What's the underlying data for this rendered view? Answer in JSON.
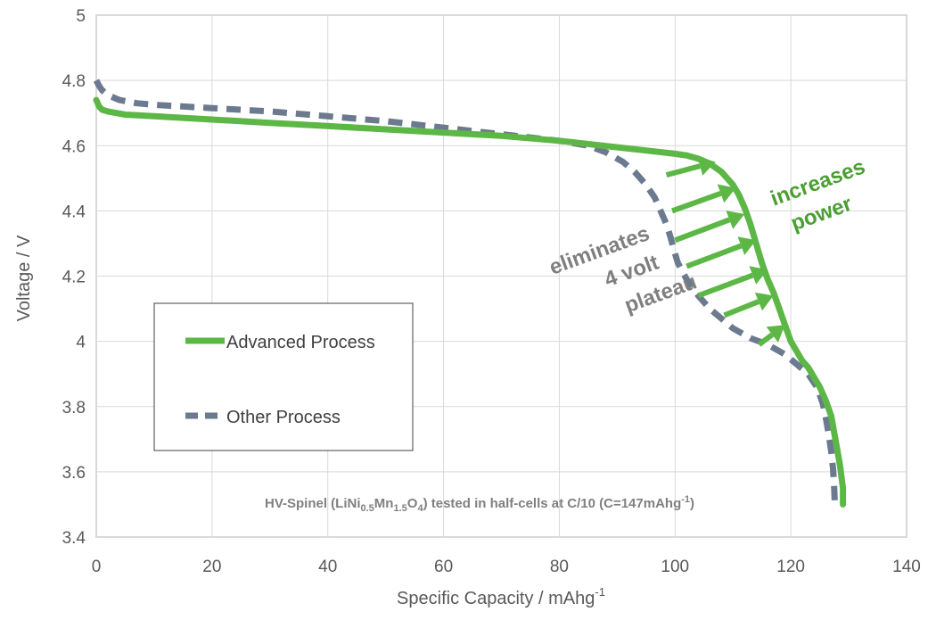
{
  "chart_data": {
    "type": "line",
    "xlabel": "Specific Capacity / mAhg",
    "xlabel_sup": "-1",
    "ylabel": "Voltage / V",
    "xlim": [
      0,
      140
    ],
    "ylim": [
      3.4,
      5
    ],
    "xticks": [
      "0",
      "20",
      "40",
      "60",
      "80",
      "100",
      "120",
      "140"
    ],
    "yticks": [
      "3.4",
      "3.6",
      "3.8",
      "4",
      "4.2",
      "4.4",
      "4.6",
      "4.8",
      "5"
    ],
    "grid": true,
    "legend_position": "bottom-left",
    "series": [
      {
        "name": "Advanced Process",
        "color": "#5cb746",
        "style": "solid",
        "x": [
          0,
          0.5,
          1,
          2,
          5,
          10,
          20,
          30,
          40,
          50,
          60,
          70,
          80,
          90,
          95,
          100,
          102,
          104,
          106,
          108,
          110,
          111,
          112,
          113,
          114,
          115,
          116,
          117,
          118,
          119,
          120,
          121,
          122,
          123,
          124,
          125,
          126,
          127,
          127.5,
          128,
          128.5,
          129,
          129
        ],
        "y": [
          4.74,
          4.72,
          4.71,
          4.705,
          4.695,
          4.69,
          4.68,
          4.67,
          4.66,
          4.65,
          4.64,
          4.63,
          4.615,
          4.595,
          4.585,
          4.575,
          4.57,
          4.56,
          4.545,
          4.52,
          4.48,
          4.45,
          4.41,
          4.36,
          4.3,
          4.24,
          4.19,
          4.15,
          4.1,
          4.05,
          4.0,
          3.97,
          3.94,
          3.92,
          3.89,
          3.86,
          3.82,
          3.77,
          3.72,
          3.67,
          3.62,
          3.55,
          3.5
        ]
      },
      {
        "name": "Other Process",
        "color": "#6b7a8f",
        "style": "dashed",
        "x": [
          0,
          0.3,
          0.6,
          1,
          2,
          4,
          7,
          10,
          20,
          30,
          40,
          50,
          60,
          70,
          80,
          85,
          88,
          91,
          93,
          95,
          96.5,
          97.5,
          98.5,
          99.2,
          99.8,
          100.5,
          102,
          104,
          106,
          108,
          110,
          113,
          116,
          119,
          121,
          123,
          124.5,
          125.5,
          126,
          126.5,
          127,
          127.3,
          127.5,
          127.6
        ],
        "y": [
          4.8,
          4.79,
          4.78,
          4.77,
          4.755,
          4.74,
          4.73,
          4.725,
          4.715,
          4.705,
          4.69,
          4.675,
          4.655,
          4.635,
          4.615,
          4.6,
          4.58,
          4.55,
          4.52,
          4.48,
          4.44,
          4.4,
          4.36,
          4.32,
          4.28,
          4.24,
          4.19,
          4.14,
          4.1,
          4.07,
          4.04,
          4.01,
          3.99,
          3.96,
          3.93,
          3.9,
          3.86,
          3.81,
          3.77,
          3.72,
          3.66,
          3.61,
          3.55,
          3.5
        ]
      }
    ],
    "arrows": [
      {
        "x0": 98.5,
        "y0": 4.51,
        "x1": 107,
        "y1": 4.55
      },
      {
        "x0": 99.5,
        "y0": 4.4,
        "x1": 110.5,
        "y1": 4.47
      },
      {
        "x0": 100,
        "y0": 4.31,
        "x1": 112,
        "y1": 4.39
      },
      {
        "x0": 102,
        "y0": 4.23,
        "x1": 114,
        "y1": 4.31
      },
      {
        "x0": 104,
        "y0": 4.14,
        "x1": 116,
        "y1": 4.22
      },
      {
        "x0": 108.5,
        "y0": 4.08,
        "x1": 117,
        "y1": 4.14
      },
      {
        "x0": 114.5,
        "y0": 3.99,
        "x1": 119,
        "y1": 4.05
      }
    ],
    "annotations": {
      "eliminates": [
        "eliminates",
        "4 volt",
        "plateau"
      ],
      "increases": [
        "increases",
        "power"
      ],
      "note_prefix": "HV-Spinel (LiNi",
      "note_sub1": "0.5",
      "note_mid": "Mn",
      "note_sub2": "1.5",
      "note_mid2": "O",
      "note_sub3": "4",
      "note_suffix": ") tested in half-cells at C/10 (C=147mAhg",
      "note_sup": "-1",
      "note_end": ")"
    }
  }
}
